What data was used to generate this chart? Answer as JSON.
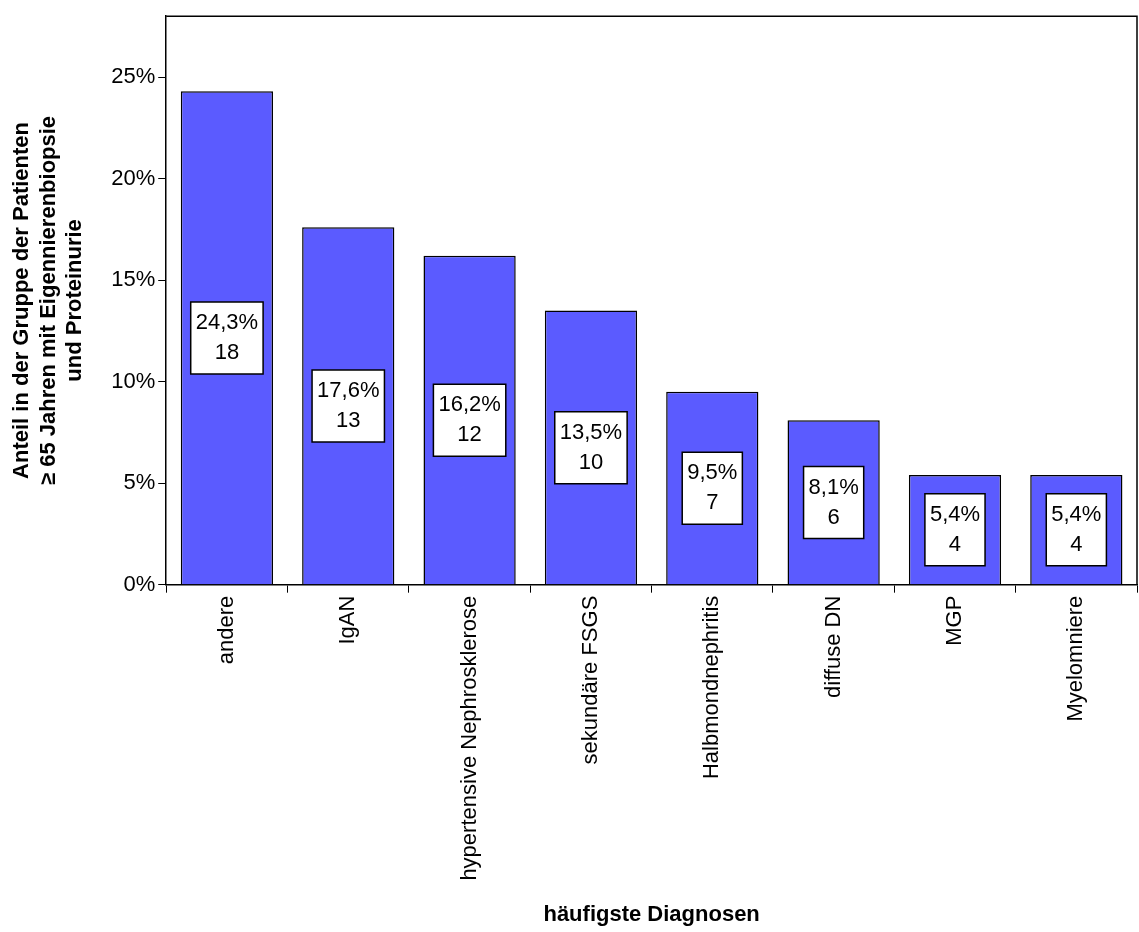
{
  "chart_data": {
    "type": "bar",
    "xlabel": "häufigste Diagnosen",
    "ylabel": "Anteil in der Gruppe der Patienten\n≥ 65 Jahren mit Eigennierenbiopsie\nund Proteinurie",
    "categories": [
      "andere",
      "IgAN",
      "hypertensive Nephrosklerose",
      "sekundäre FSGS",
      "Halbmondnephritis",
      "diffuse DN",
      "MGP",
      "Myelomniere"
    ],
    "values": [
      24.3,
      17.6,
      16.2,
      13.5,
      9.5,
      8.1,
      5.4,
      5.4
    ],
    "value_labels": [
      "24,3%\n18",
      "17,6%\n13",
      "16,2%\n12",
      "13,5%\n10",
      "9,5%\n7",
      "8,1%\n6",
      "5,4%\n4",
      "5,4%\n4"
    ],
    "color": "#5b5bff",
    "ylim": [
      0,
      28
    ],
    "yticks": [
      {
        "value": 0,
        "label": "0%"
      },
      {
        "value": 5,
        "label": "5%"
      },
      {
        "value": 10,
        "label": "10%"
      },
      {
        "value": 15,
        "label": "15%"
      },
      {
        "value": 20,
        "label": "20%"
      },
      {
        "value": 25,
        "label": "25%"
      }
    ],
    "grid": false,
    "legend": false
  }
}
